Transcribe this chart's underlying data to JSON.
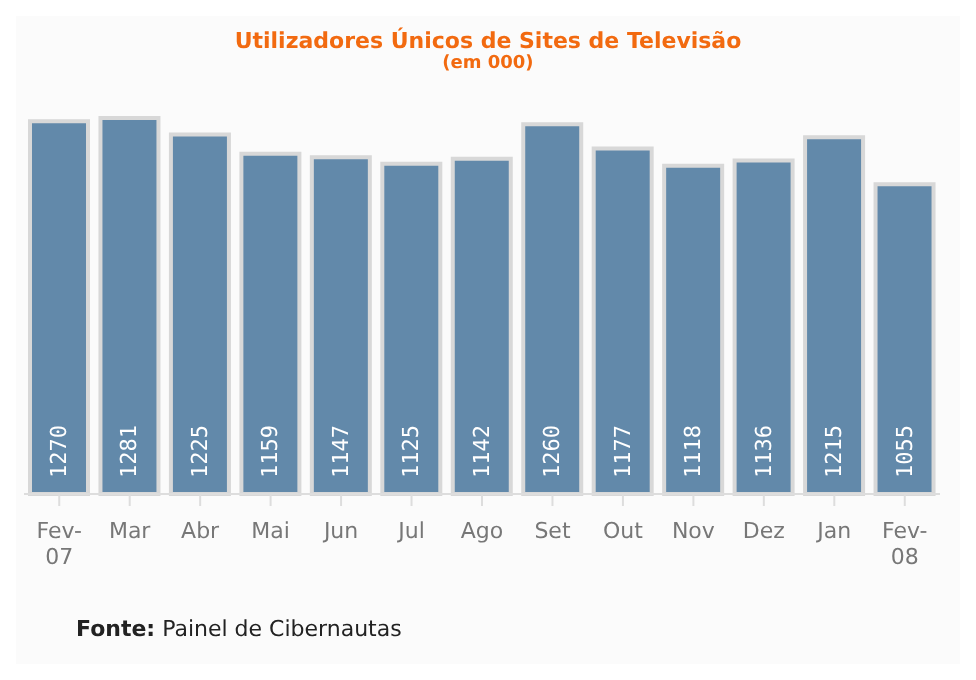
{
  "chart_data": {
    "type": "bar",
    "title": "Utilizadores Únicos de Sites de Televisão",
    "subtitle": "(em 000)",
    "categories": [
      "Fev-07",
      "Mar",
      "Abr",
      "Mai",
      "Jun",
      "Jul",
      "Ago",
      "Set",
      "Out",
      "Nov",
      "Dez",
      "Jan",
      "Fev-08"
    ],
    "values": [
      1270,
      1281,
      1225,
      1159,
      1147,
      1125,
      1142,
      1260,
      1177,
      1118,
      1136,
      1215,
      1055
    ],
    "color": "#6289aa",
    "data_labels": true,
    "annotations": [
      "Fonte: Painel de Cibernautas"
    ]
  }
}
